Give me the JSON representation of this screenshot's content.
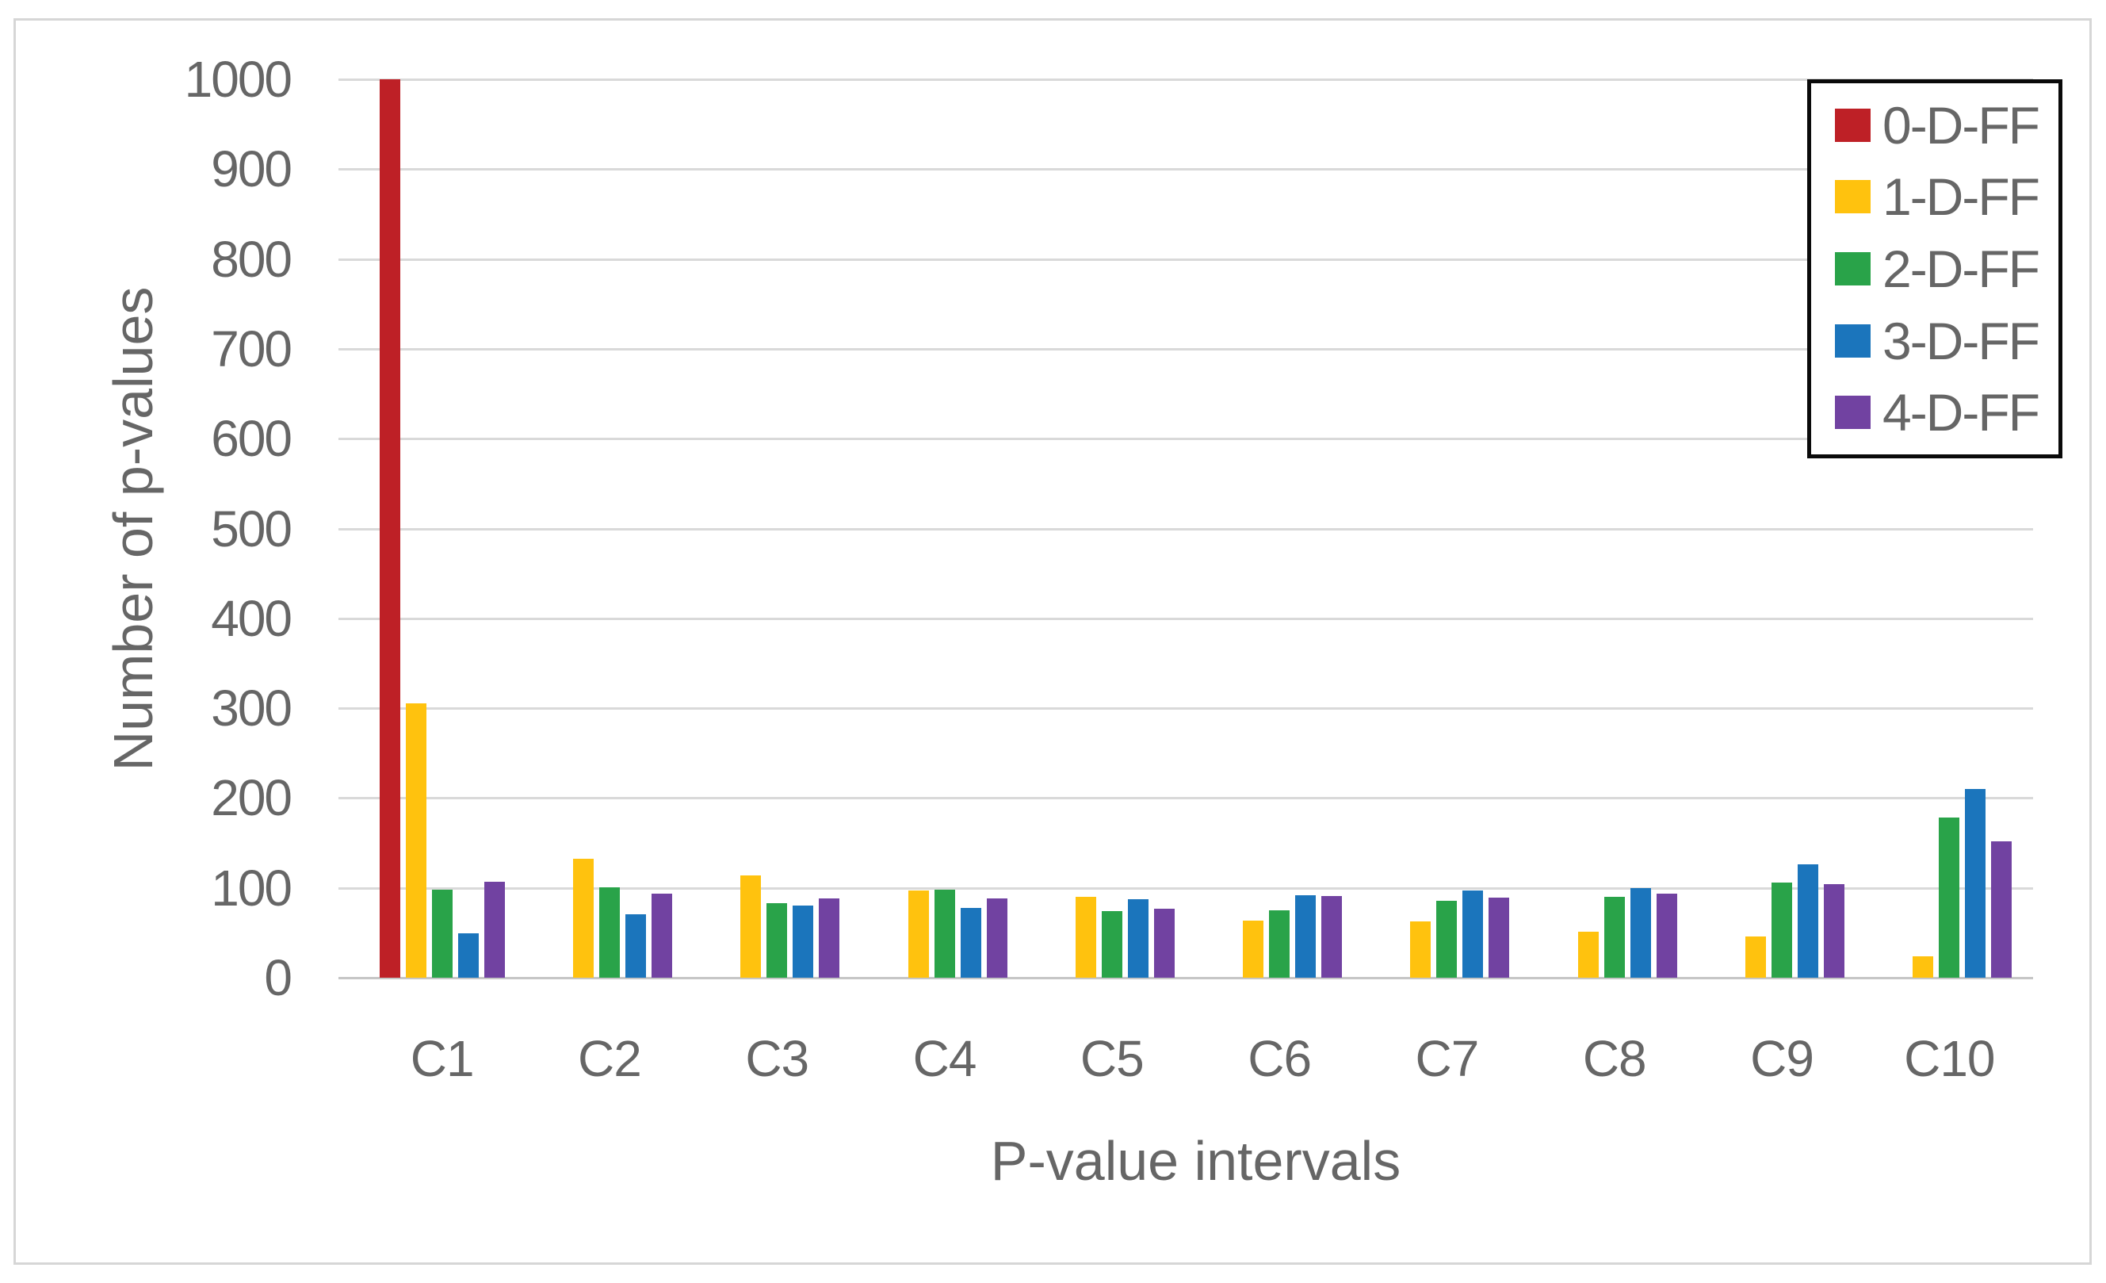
{
  "chart_data": {
    "type": "bar",
    "title": "",
    "xlabel": "P-value intervals",
    "ylabel": "Number of p-values",
    "categories": [
      "C1",
      "C2",
      "C3",
      "C4",
      "C5",
      "C6",
      "C7",
      "C8",
      "C9",
      "C10"
    ],
    "series": [
      {
        "name": "0-D-FF",
        "color": "#BE2026",
        "values": [
          1000,
          0,
          0,
          0,
          0,
          0,
          0,
          0,
          0,
          0
        ]
      },
      {
        "name": "1-D-FF",
        "color": "#FFC20E",
        "values": [
          305,
          132,
          114,
          97,
          90,
          64,
          63,
          51,
          46,
          24
        ]
      },
      {
        "name": "2-D-FF",
        "color": "#29A349",
        "values": [
          98,
          101,
          83,
          98,
          74,
          75,
          86,
          90,
          106,
          178
        ]
      },
      {
        "name": "3-D-FF",
        "color": "#1B75BC",
        "values": [
          49,
          71,
          80,
          78,
          87,
          92,
          97,
          100,
          126,
          210
        ]
      },
      {
        "name": "4-D-FF",
        "color": "#7142A1",
        "values": [
          107,
          94,
          88,
          88,
          77,
          91,
          89,
          94,
          104,
          152
        ]
      }
    ],
    "ylim": [
      0,
      1000
    ],
    "yticks": [
      0,
      100,
      200,
      300,
      400,
      500,
      600,
      700,
      800,
      900,
      1000
    ],
    "grid": true,
    "legend_position": "top-right"
  },
  "colors": {
    "text": "#666666",
    "gridline": "#D9D9D9",
    "axis_line": "#C6C6C6",
    "figure_border": "#D6D6D6",
    "legend_border": "#0a0a0a",
    "background": "#FFFFFF"
  }
}
